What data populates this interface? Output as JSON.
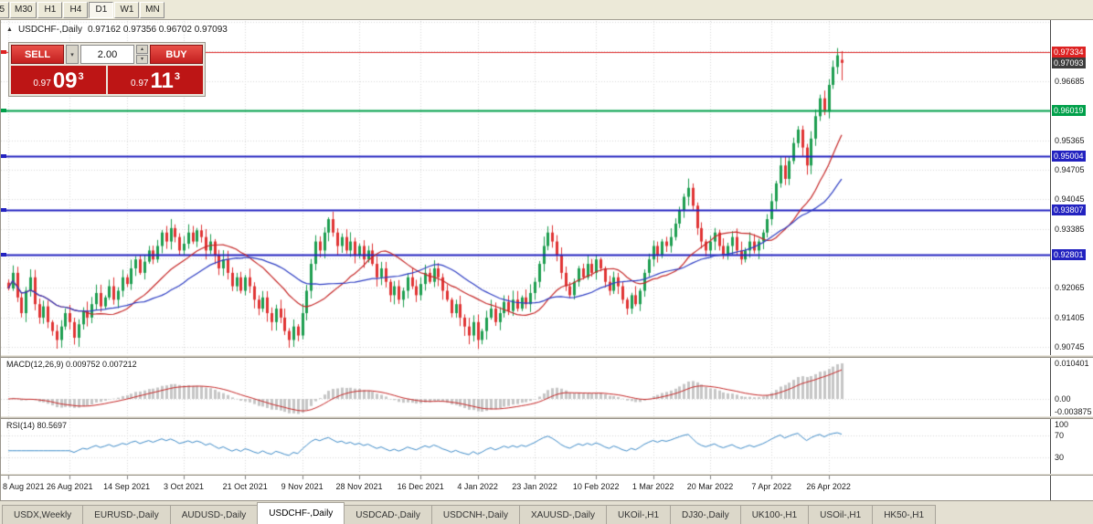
{
  "icons": {
    "collapse_triangle": "▲",
    "chevron_up": "▴",
    "chevron_down": "▾"
  },
  "toolbar": {
    "timeframe_buttons": [
      {
        "label": "5",
        "cropped": true
      },
      {
        "label": "M30"
      },
      {
        "label": "H1"
      },
      {
        "label": "H4"
      },
      {
        "label": "D1"
      },
      {
        "label": "W1"
      },
      {
        "label": "MN"
      }
    ],
    "active": "D1"
  },
  "chart": {
    "symbol_period": "USDCHF-,Daily",
    "ohlc": "0.97162 0.97356 0.96702 0.97093"
  },
  "trade_panel": {
    "sell_label": "SELL",
    "buy_label": "BUY",
    "volume": "2.00",
    "sell_price": {
      "prefix": "0.97",
      "big": "09",
      "sup": "3"
    },
    "buy_price": {
      "prefix": "0.97",
      "big": "11",
      "sup": "3"
    }
  },
  "indicators": {
    "macd_label": "MACD(12,26,9) 0.009752 0.007212",
    "rsi_label": "RSI(14) 80.5697",
    "macd_axis": {
      "max": "0.010401",
      "zero": "0.00",
      "min": "-0.003875"
    },
    "rsi_axis": {
      "top": "100",
      "upper": "70",
      "lower": "30"
    }
  },
  "price_axis": {
    "ticks": [
      {
        "value": "0.96685",
        "price": 0.96685
      },
      {
        "value": "0.95365",
        "price": 0.95365
      },
      {
        "value": "0.94705",
        "price": 0.94705
      },
      {
        "value": "0.94045",
        "price": 0.94045
      },
      {
        "value": "0.93385",
        "price": 0.93385
      },
      {
        "value": "0.92065",
        "price": 0.92065
      },
      {
        "value": "0.91405",
        "price": 0.91405
      },
      {
        "value": "0.90745",
        "price": 0.90745
      }
    ],
    "badges": [
      {
        "value": "0.97334",
        "price": 0.97334,
        "color": "#dd2222"
      },
      {
        "value": "0.97093",
        "price": 0.97093,
        "color": "#3c3c3c"
      },
      {
        "value": "0.96019",
        "price": 0.96019,
        "color": "#00a04a"
      },
      {
        "value": "0.95004",
        "price": 0.95004,
        "color": "#2222c0"
      },
      {
        "value": "0.93807",
        "price": 0.93807,
        "color": "#2222c0"
      },
      {
        "value": "0.92801",
        "price": 0.92801,
        "color": "#2222c0"
      }
    ]
  },
  "tabs": {
    "items": [
      {
        "label": "USDX,Weekly"
      },
      {
        "label": "EURUSD-,Daily"
      },
      {
        "label": "AUDUSD-,Daily"
      },
      {
        "label": "USDCHF-,Daily",
        "active": true
      },
      {
        "label": "USDCAD-,Daily"
      },
      {
        "label": "USDCNH-,Daily"
      },
      {
        "label": "XAUUSD-,Daily"
      },
      {
        "label": "UKOil-,H1"
      },
      {
        "label": "DJ30-,Daily"
      },
      {
        "label": "UK100-,H1"
      },
      {
        "label": "USOil-,H1"
      },
      {
        "label": "HK50-,H1"
      }
    ]
  },
  "chart_data": {
    "type": "candlestick",
    "symbol": "USDCHF-",
    "period": "Daily",
    "price_range_visible": [
      0.9056,
      0.9803
    ],
    "last_candle": {
      "open": 0.97162,
      "high": 0.97356,
      "low": 0.96702,
      "close": 0.97093
    },
    "closes": [
      0.9205,
      0.924,
      0.9185,
      0.915,
      0.92,
      0.923,
      0.917,
      0.914,
      0.9165,
      0.913,
      0.911,
      0.909,
      0.912,
      0.915,
      0.913,
      0.9095,
      0.9125,
      0.9155,
      0.914,
      0.917,
      0.9195,
      0.9165,
      0.9185,
      0.921,
      0.918,
      0.92,
      0.923,
      0.9215,
      0.925,
      0.927,
      0.924,
      0.9265,
      0.929,
      0.927,
      0.93,
      0.933,
      0.931,
      0.934,
      0.932,
      0.929,
      0.9305,
      0.933,
      0.931,
      0.9335,
      0.932,
      0.929,
      0.931,
      0.928,
      0.925,
      0.927,
      0.924,
      0.921,
      0.923,
      0.92,
      0.923,
      0.921,
      0.918,
      0.916,
      0.9185,
      0.915,
      0.913,
      0.916,
      0.914,
      0.911,
      0.909,
      0.912,
      0.91,
      0.915,
      0.92,
      0.926,
      0.931,
      0.929,
      0.933,
      0.936,
      0.933,
      0.93,
      0.932,
      0.929,
      0.931,
      0.928,
      0.93,
      0.927,
      0.929,
      0.926,
      0.923,
      0.925,
      0.922,
      0.919,
      0.921,
      0.918,
      0.92,
      0.923,
      0.921,
      0.919,
      0.9215,
      0.924,
      0.922,
      0.925,
      0.923,
      0.92,
      0.918,
      0.915,
      0.917,
      0.914,
      0.912,
      0.91,
      0.913,
      0.909,
      0.911,
      0.914,
      0.916,
      0.913,
      0.915,
      0.9175,
      0.9155,
      0.918,
      0.916,
      0.9185,
      0.917,
      0.9195,
      0.922,
      0.926,
      0.93,
      0.933,
      0.931,
      0.928,
      0.924,
      0.921,
      0.919,
      0.922,
      0.925,
      0.923,
      0.926,
      0.924,
      0.927,
      0.925,
      0.922,
      0.92,
      0.923,
      0.921,
      0.918,
      0.916,
      0.919,
      0.917,
      0.92,
      0.924,
      0.927,
      0.93,
      0.928,
      0.931,
      0.93,
      0.932,
      0.935,
      0.938,
      0.941,
      0.943,
      0.939,
      0.934,
      0.931,
      0.929,
      0.931,
      0.933,
      0.93,
      0.928,
      0.93,
      0.932,
      0.929,
      0.927,
      0.929,
      0.931,
      0.929,
      0.931,
      0.933,
      0.936,
      0.94,
      0.944,
      0.948,
      0.945,
      0.949,
      0.953,
      0.956,
      0.952,
      0.948,
      0.954,
      0.959,
      0.963,
      0.96,
      0.966,
      0.97,
      0.9726,
      0.97093
    ],
    "x_axis": [
      {
        "label": "8 Aug 2021",
        "i": 0
      },
      {
        "label": "26 Aug 2021",
        "i": 14
      },
      {
        "label": "14 Sep 2021",
        "i": 27
      },
      {
        "label": "3 Oct 2021",
        "i": 40
      },
      {
        "label": "21 Oct 2021",
        "i": 54
      },
      {
        "label": "9 Nov 2021",
        "i": 67
      },
      {
        "label": "28 Nov 2021",
        "i": 80
      },
      {
        "label": "16 Dec 2021",
        "i": 94
      },
      {
        "label": "4 Jan 2022",
        "i": 107
      },
      {
        "label": "23 Jan 2022",
        "i": 120
      },
      {
        "label": "10 Feb 2022",
        "i": 134
      },
      {
        "label": "1 Mar 2022",
        "i": 147
      },
      {
        "label": "20 Mar 2022",
        "i": 160
      },
      {
        "label": "7 Apr 2022",
        "i": 174
      },
      {
        "label": "26 Apr 2022",
        "i": 187
      }
    ],
    "hlines": [
      {
        "price": 0.97334,
        "color": "#dd2222",
        "width": 1
      },
      {
        "price": 0.96019,
        "color": "#00a04a",
        "width": 2
      },
      {
        "price": 0.95004,
        "color": "#2222c0",
        "width": 2
      },
      {
        "price": 0.93807,
        "color": "#2222c0",
        "width": 2
      },
      {
        "price": 0.92801,
        "color": "#2222c0",
        "width": 2
      }
    ],
    "moving_averages": [
      {
        "period": 18,
        "color": "#c62828"
      },
      {
        "period": 30,
        "color": "#2f3fc4"
      }
    ],
    "macd": {
      "fast": 12,
      "slow": 26,
      "signal": 9,
      "current_macd": 0.009752,
      "current_signal": 0.007212,
      "axis_max": 0.010401,
      "axis_min": -0.003875
    },
    "rsi": {
      "period": 14,
      "current": 80.5697,
      "levels": [
        100,
        70,
        30
      ]
    },
    "colors": {
      "candle_up": "#1e9e50",
      "candle_down": "#e03434",
      "ma_fast": "#c62828",
      "ma_slow": "#2f3fc4",
      "macd_hist": "#c6c6c6",
      "macd_signal": "#c62828",
      "rsi_line": "#3f8cc9",
      "grid": "#d9d9d9"
    }
  }
}
